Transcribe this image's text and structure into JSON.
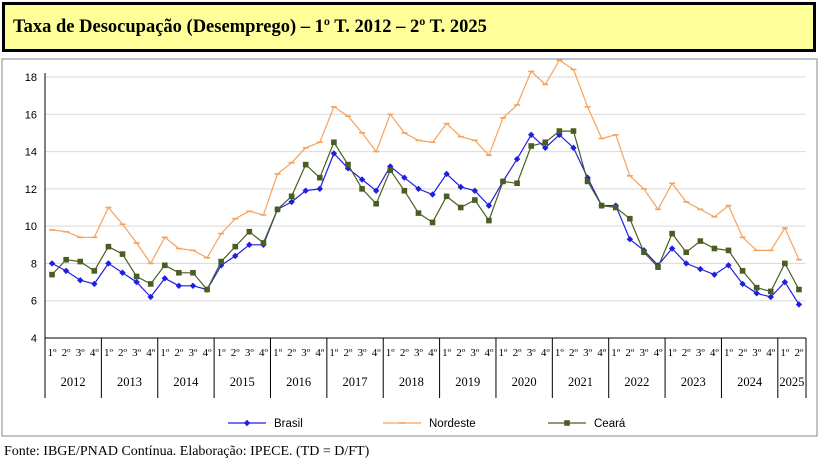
{
  "title": "Taxa de Desocupação (Desemprego) – 1º T. 2012 – 2º T. 2025",
  "source": "Fonte: IBGE/PNAD Contínua. Elaboração: IPECE. (TD = D/FT)",
  "colors": {
    "brasil": "#1f1fe0",
    "nordeste": "#f5a35c",
    "ceara": "#4a5e24",
    "title_bg": "#ffff99"
  },
  "chart_data": {
    "type": "line",
    "quarter_labels": [
      "1º",
      "2º",
      "3º",
      "4º"
    ],
    "years": [
      "2012",
      "2013",
      "2014",
      "2015",
      "2016",
      "2017",
      "2018",
      "2019",
      "2020",
      "2021",
      "2022",
      "2023",
      "2024",
      "2025"
    ],
    "ylim": [
      4,
      18
    ],
    "yticks": [
      4,
      6,
      8,
      10,
      12,
      14,
      16,
      18
    ],
    "grid": true,
    "legend_position": "bottom",
    "series": [
      {
        "name": "Brasil",
        "marker": "diamond",
        "values": [
          8.0,
          7.6,
          7.1,
          6.9,
          8.0,
          7.5,
          7.0,
          6.2,
          7.2,
          6.8,
          6.8,
          6.6,
          7.9,
          8.4,
          9.0,
          9.0,
          10.9,
          11.3,
          11.9,
          12.0,
          13.9,
          13.1,
          12.5,
          11.9,
          13.2,
          12.6,
          12.0,
          11.7,
          12.8,
          12.1,
          11.9,
          11.1,
          12.4,
          13.6,
          14.9,
          14.2,
          14.9,
          14.2,
          12.6,
          11.1,
          11.1,
          9.3,
          8.7,
          7.9,
          8.8,
          8.0,
          7.7,
          7.4,
          7.9,
          6.9,
          6.4,
          6.2,
          7.0,
          5.8
        ]
      },
      {
        "name": "Nordeste",
        "marker": "dash",
        "values": [
          9.8,
          9.7,
          9.4,
          9.4,
          11.0,
          10.1,
          9.1,
          8.0,
          9.4,
          8.8,
          8.7,
          8.3,
          9.6,
          10.4,
          10.8,
          10.6,
          12.8,
          13.4,
          14.2,
          14.5,
          16.4,
          15.9,
          15.0,
          14.0,
          16.0,
          15.0,
          14.6,
          14.5,
          15.5,
          14.8,
          14.6,
          13.8,
          15.8,
          16.5,
          18.3,
          17.6,
          18.9,
          18.4,
          16.4,
          14.7,
          14.9,
          12.7,
          12.0,
          10.9,
          12.3,
          11.3,
          10.9,
          10.5,
          11.1,
          9.4,
          8.7,
          8.7,
          9.9,
          8.2
        ]
      },
      {
        "name": "Ceará",
        "marker": "square",
        "values": [
          7.4,
          8.2,
          8.1,
          7.6,
          8.9,
          8.5,
          7.3,
          6.9,
          7.9,
          7.5,
          7.5,
          6.6,
          8.1,
          8.9,
          9.7,
          9.1,
          10.9,
          11.6,
          13.3,
          12.6,
          14.5,
          13.3,
          12.0,
          11.2,
          13.0,
          11.9,
          10.7,
          10.2,
          11.6,
          11.0,
          11.4,
          10.3,
          12.4,
          12.3,
          14.3,
          14.5,
          15.1,
          15.1,
          12.4,
          11.1,
          11.0,
          10.4,
          8.6,
          7.8,
          9.6,
          8.6,
          9.2,
          8.8,
          8.7,
          7.6,
          6.7,
          6.5,
          8.0,
          6.6
        ]
      }
    ]
  }
}
